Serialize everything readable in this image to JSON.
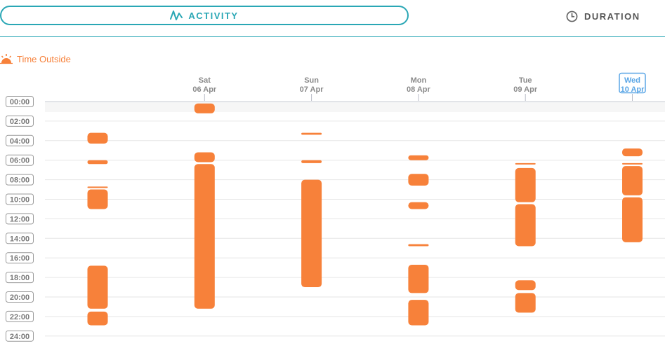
{
  "tabs": {
    "activity_label": "ACTIVITY",
    "duration_label": "DURATION"
  },
  "section": {
    "title": "Time Outside",
    "icon": "sunrise-icon"
  },
  "colors": {
    "accent": "#2aa7b5",
    "bar": "#f7813a",
    "current_day": "#5aa6e6",
    "grid": "#e6e6e6"
  },
  "chart_data": {
    "type": "bar",
    "orientation": "vertical-ranges",
    "y_ticks": [
      "00:00",
      "02:00",
      "04:00",
      "06:00",
      "08:00",
      "10:00",
      "12:00",
      "14:00",
      "16:00",
      "18:00",
      "20:00",
      "22:00",
      "24:00"
    ],
    "ylim": [
      0,
      24
    ],
    "days": [
      {
        "weekday": "",
        "date": "",
        "current": false,
        "intervals": [
          [
            3.2,
            4.3
          ],
          [
            6.0,
            6.4
          ],
          [
            8.7,
            8.8
          ],
          [
            9.0,
            11.0
          ],
          [
            16.8,
            21.2
          ],
          [
            21.5,
            22.9
          ]
        ]
      },
      {
        "weekday": "Sat",
        "date": "06 Apr",
        "current": false,
        "intervals": [
          [
            0.2,
            1.2
          ],
          [
            5.2,
            6.2
          ],
          [
            6.4,
            21.2
          ]
        ]
      },
      {
        "weekday": "Sun",
        "date": "07 Apr",
        "current": false,
        "intervals": [
          [
            3.2,
            3.4
          ],
          [
            6.0,
            6.3
          ],
          [
            8.0,
            19.0
          ]
        ]
      },
      {
        "weekday": "Mon",
        "date": "08 Apr",
        "current": false,
        "intervals": [
          [
            5.5,
            6.0
          ],
          [
            7.4,
            8.6
          ],
          [
            10.3,
            11.0
          ],
          [
            14.6,
            14.8
          ],
          [
            16.7,
            19.6
          ],
          [
            20.3,
            22.9
          ]
        ]
      },
      {
        "weekday": "Tue",
        "date": "09 Apr",
        "current": false,
        "intervals": [
          [
            6.3,
            6.4
          ],
          [
            6.8,
            10.3
          ],
          [
            10.5,
            14.8
          ],
          [
            18.3,
            19.3
          ],
          [
            19.6,
            21.6
          ]
        ]
      },
      {
        "weekday": "Wed",
        "date": "10 Apr",
        "current": true,
        "intervals": [
          [
            4.8,
            5.6
          ],
          [
            6.3,
            6.4
          ],
          [
            6.6,
            9.6
          ],
          [
            9.8,
            14.4
          ]
        ]
      }
    ]
  }
}
